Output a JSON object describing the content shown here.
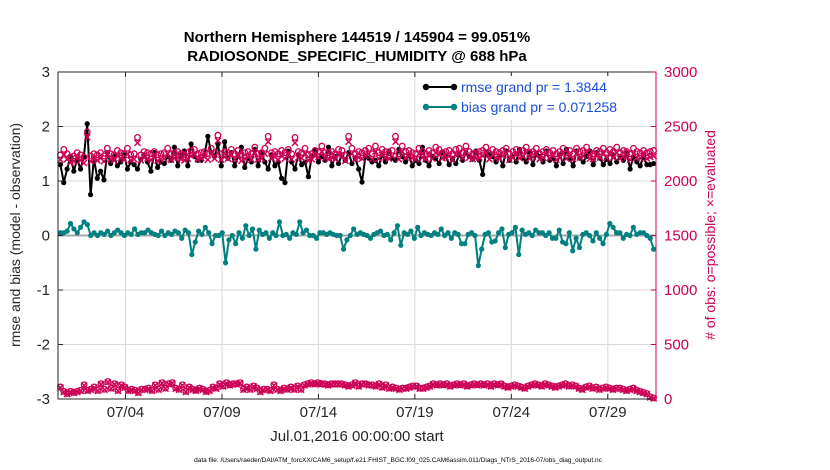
{
  "chart_data": {
    "type": "line",
    "title": "Northern Hemisphere 144519 / 145904 = 99.051%",
    "subtitle": "RADIOSONDE_SPECIFIC_HUMIDITY @ 688 hPa",
    "xlabel": "Jul.01,2016 00:00:00 start",
    "ylabel": "rmse and bias (model - observation)",
    "ylabel_right": "# of obs: o=possible; ×=evaluated",
    "footer": "data file: /Users/raeder/DAI/ATM_forcXX/CAM6_setup/f.e21.FHIST_BGC.f09_025.CAM6assim.011/Diags_NTrS_2016-07/obs_diag_output.nc",
    "xlim": [
      0.5,
      31.5
    ],
    "ylim": [
      -3,
      3
    ],
    "ylim_right": [
      0,
      3000
    ],
    "x_ticks": [
      4,
      9,
      14,
      19,
      24,
      29
    ],
    "x_tick_labels": [
      "07/04",
      "07/09",
      "07/14",
      "07/19",
      "07/24",
      "07/29"
    ],
    "y_ticks": [
      -3,
      -2,
      -1,
      0,
      1,
      2,
      3
    ],
    "y_tick_labels": [
      "-3",
      "-2",
      "-1",
      "0",
      "1",
      "2",
      "3"
    ],
    "y_right_ticks": [
      0,
      500,
      1000,
      1500,
      2000,
      2500,
      3000
    ],
    "y_right_tick_labels": [
      "0",
      "500",
      "1000",
      "1500",
      "2000",
      "2500",
      "3000"
    ],
    "legend": [
      {
        "label": "rmse grand pr = 1.3844",
        "color": "#000000"
      },
      {
        "label": "bias grand pr = 0.071258",
        "color": "#008080"
      }
    ],
    "series": [
      {
        "name": "rmse",
        "color": "#000000",
        "axis": "left",
        "values": [
          1.3,
          0.97,
          1.22,
          1.45,
          1.18,
          1.4,
          1.22,
          1.45,
          2.05,
          0.75,
          1.42,
          1.05,
          1.18,
          1.02,
          1.52,
          1.32,
          1.45,
          1.28,
          1.35,
          1.48,
          1.22,
          1.35,
          1.3,
          1.22,
          1.4,
          1.48,
          1.35,
          1.18,
          1.52,
          1.25,
          1.35,
          1.32,
          1.45,
          1.38,
          1.62,
          1.28,
          1.48,
          1.55,
          1.28,
          1.68,
          1.45,
          1.38,
          1.38,
          1.48,
          1.82,
          1.52,
          1.45,
          1.68,
          1.28,
          1.72,
          1.42,
          1.52,
          1.28,
          1.45,
          1.62,
          1.25,
          1.42,
          1.35,
          1.58,
          1.28,
          1.52,
          1.35,
          1.22,
          1.48,
          1.28,
          1.35,
          1.05,
          0.97,
          1.55,
          1.35,
          1.22,
          1.48,
          1.3,
          1.35,
          1.08,
          1.45,
          1.55,
          1.35,
          1.45,
          1.38,
          1.62,
          1.28,
          1.45,
          1.32,
          1.48,
          1.38,
          1.52,
          1.32,
          1.42,
          1.22,
          0.98,
          1.45,
          1.42,
          1.35,
          1.38,
          1.28,
          1.48,
          1.35,
          1.55,
          1.42,
          1.38,
          1.58,
          1.45,
          1.35,
          1.48,
          1.28,
          1.38,
          1.32,
          1.62,
          1.38,
          1.28,
          1.45,
          1.42,
          1.32,
          1.52,
          1.45,
          1.3,
          1.4,
          1.32,
          1.48,
          1.38,
          1.52,
          1.45,
          1.4,
          1.55,
          1.38,
          1.12,
          1.52,
          1.48,
          1.45,
          1.35,
          1.45,
          1.28,
          1.55,
          1.38,
          1.45,
          1.35,
          1.58,
          1.42,
          1.35,
          1.52,
          1.3,
          1.5,
          1.45,
          1.35,
          1.55,
          1.38,
          1.42,
          1.28,
          1.48,
          1.32,
          1.58,
          1.4,
          1.28,
          1.55,
          1.42,
          1.35,
          1.45,
          1.55,
          1.3,
          1.52,
          1.42,
          1.3,
          1.4,
          1.32,
          1.48,
          1.35,
          1.45,
          1.38,
          1.52,
          1.22,
          1.45,
          1.35,
          1.28,
          1.45,
          1.3,
          1.3,
          1.32
        ]
      },
      {
        "name": "bias",
        "color": "#008080",
        "axis": "left",
        "values": [
          0.05,
          0.05,
          0.08,
          0.22,
          0.12,
          0.05,
          0.15,
          0.25,
          0.2,
          0.0,
          0.05,
          0.0,
          0.05,
          0.02,
          0.08,
          0.0,
          0.05,
          0.1,
          0.05,
          0.0,
          0.05,
          0.02,
          0.12,
          0.02,
          0.05,
          0.05,
          0.1,
          0.05,
          0.02,
          0.0,
          0.08,
          0.0,
          0.05,
          0.02,
          0.08,
          0.05,
          -0.05,
          0.1,
          0.05,
          -0.35,
          -0.12,
          0.08,
          0.02,
          0.15,
          0.05,
          -0.15,
          0.0,
          0.0,
          0.05,
          -0.5,
          -0.08,
          0.0,
          -0.15,
          0.05,
          -0.05,
          0.18,
          0.0,
          0.12,
          -0.25,
          0.1,
          0.02,
          0.05,
          -0.05,
          0.05,
          0.0,
          0.25,
          0.0,
          0.02,
          -0.05,
          0.05,
          0.02,
          0.25,
          0.05,
          0.1,
          0.0,
          0.0,
          -0.05,
          0.05,
          0.05,
          0.02,
          0.05,
          0.02,
          0.0,
          0.0,
          -0.25,
          -0.08,
          0.0,
          0.12,
          0.02,
          0.05,
          0.02,
          0.0,
          -0.05,
          0.02,
          0.05,
          0.08,
          0.0,
          0.02,
          -0.08,
          0.05,
          0.18,
          -0.18,
          0.05,
          0.02,
          0.08,
          -0.05,
          0.15,
          0.0,
          0.05,
          0.02,
          0.0,
          0.05,
          0.02,
          0.12,
          0.0,
          0.05,
          -0.05,
          0.05,
          0.02,
          -0.15,
          -0.15,
          0.02,
          0.05,
          0.0,
          -0.55,
          -0.25,
          0.02,
          0.05,
          -0.12,
          -0.1,
          0.05,
          0.12,
          -0.22,
          0.02,
          0.05,
          0.15,
          -0.35,
          0.1,
          0.02,
          0.05,
          0.0,
          0.1,
          0.05,
          0.05,
          0.0,
          0.05,
          -0.05,
          -0.05,
          0.1,
          -0.12,
          -0.15,
          0.05,
          -0.28,
          -0.05,
          -0.22,
          0.02,
          0.05,
          0.0,
          -0.1,
          0.05,
          -0.05,
          -0.15,
          0.02,
          0.22,
          0.15,
          0.05,
          0.05,
          -0.05,
          0.02,
          0.0,
          0.15,
          0.02,
          0.05,
          0.05,
          0.0,
          -0.05,
          -0.25
        ]
      },
      {
        "name": "possible",
        "color": "#cc0055",
        "axis": "right",
        "marker": "o",
        "values": [
          2240,
          2290,
          2250,
          2220,
          2230,
          2260,
          2240,
          2220,
          2450,
          2230,
          2250,
          2240,
          2260,
          2230,
          2300,
          2250,
          2240,
          2280,
          2260,
          2250,
          2300,
          2240,
          2250,
          2400,
          2240,
          2270,
          2260,
          2250,
          2270,
          2240,
          2250,
          2260,
          2300,
          2250,
          2260,
          2270,
          2250,
          2240,
          2260,
          2280,
          2290,
          2250,
          2260,
          2270,
          2250,
          2300,
          2260,
          2420,
          2250,
          2270,
          2260,
          2290,
          2250,
          2280,
          2240,
          2260,
          2270,
          2250,
          2310,
          2250,
          2260,
          2300,
          2410,
          2260,
          2270,
          2250,
          2280,
          2260,
          2290,
          2250,
          2400,
          2270,
          2260,
          2300,
          2240,
          2250,
          2280,
          2270,
          2320,
          2260,
          2260,
          2270,
          2250,
          2290,
          2280,
          2240,
          2410,
          2300,
          2250,
          2270,
          2260,
          2280,
          2300,
          2250,
          2320,
          2260,
          2290,
          2270,
          2260,
          2280,
          2410,
          2250,
          2320,
          2270,
          2280,
          2260,
          2250,
          2300,
          2270,
          2250,
          2280,
          2260,
          2310,
          2290,
          2260,
          2270,
          2280,
          2250,
          2290,
          2300,
          2260,
          2320,
          2270,
          2250,
          2260,
          2270,
          2280,
          2310,
          2250,
          2290,
          2270,
          2260,
          2280,
          2300,
          2250,
          2270,
          2290,
          2260,
          2280,
          2310,
          2260,
          2270,
          2300,
          2250,
          2270,
          2290,
          2260,
          2280,
          2250,
          2270,
          2300,
          2260,
          2280,
          2250,
          2300,
          2270,
          2280,
          2310,
          2260,
          2250,
          2280,
          2270,
          2300,
          2260,
          2290,
          2270,
          2310,
          2260,
          2280,
          2270,
          2250,
          2300,
          2270,
          2260,
          2280,
          2260,
          2270,
          2280
        ]
      },
      {
        "name": "evaluated",
        "color": "#cc0055",
        "axis": "right",
        "marker": "x",
        "values": [
          2195,
          2240,
          2200,
          2170,
          2180,
          2210,
          2190,
          2165,
          2400,
          2180,
          2200,
          2190,
          2210,
          2180,
          2250,
          2200,
          2190,
          2230,
          2210,
          2195,
          2250,
          2190,
          2200,
          2350,
          2190,
          2215,
          2205,
          2195,
          2215,
          2185,
          2200,
          2205,
          2250,
          2195,
          2210,
          2215,
          2200,
          2190,
          2205,
          2230,
          2240,
          2200,
          2210,
          2220,
          2195,
          2250,
          2205,
          2370,
          2195,
          2220,
          2205,
          2240,
          2200,
          2230,
          2185,
          2205,
          2220,
          2195,
          2260,
          2200,
          2205,
          2250,
          2360,
          2210,
          2220,
          2195,
          2230,
          2205,
          2240,
          2200,
          2350,
          2215,
          2210,
          2250,
          2190,
          2200,
          2230,
          2220,
          2270,
          2210,
          2205,
          2215,
          2200,
          2240,
          2230,
          2185,
          2360,
          2250,
          2200,
          2215,
          2205,
          2230,
          2250,
          2200,
          2270,
          2205,
          2240,
          2215,
          2205,
          2230,
          2360,
          2200,
          2270,
          2215,
          2230,
          2210,
          2200,
          2250,
          2215,
          2200,
          2230,
          2205,
          2260,
          2240,
          2210,
          2215,
          2230,
          2195,
          2240,
          2250,
          2210,
          2270,
          2215,
          2200,
          2210,
          2215,
          2230,
          2260,
          2200,
          2240,
          2215,
          2205,
          2230,
          2250,
          2195,
          2215,
          2240,
          2210,
          2225,
          2260,
          2205,
          2220,
          2250,
          2200,
          2215,
          2240,
          2210,
          2230,
          2195,
          2215,
          2250,
          2205,
          2230,
          2200,
          2250,
          2215,
          2230,
          2260,
          2205,
          2200,
          2230,
          2215,
          2250,
          2210,
          2240,
          2215,
          2260,
          2205,
          2225,
          2220,
          2195,
          2250,
          2215,
          2210,
          2230,
          2205,
          2220,
          2230
        ]
      },
      {
        "name": "possible_low",
        "color": "#cc0055",
        "axis": "right",
        "marker": "o",
        "values": [
          110,
          70,
          50,
          70,
          60,
          70,
          80,
          130,
          80,
          90,
          110,
          80,
          140,
          90,
          160,
          100,
          140,
          80,
          130,
          110,
          80,
          90,
          80,
          60,
          90,
          90,
          100,
          80,
          130,
          90,
          150,
          100,
          140,
          150,
          100,
          90,
          130,
          70,
          110,
          90,
          80,
          100,
          90,
          70,
          80,
          110,
          100,
          140,
          120,
          150,
          130,
          140,
          140,
          150,
          90,
          110,
          90,
          120,
          100,
          70,
          90,
          90,
          80,
          130,
          90,
          80,
          100,
          90,
          110,
          90,
          120,
          90,
          130,
          140,
          150,
          140,
          150,
          140,
          140,
          130,
          140,
          140,
          140,
          140,
          130,
          120,
          130,
          150,
          120,
          140,
          140,
          130,
          130,
          120,
          140,
          110,
          130,
          100,
          110,
          100,
          90,
          100,
          100,
          110,
          120,
          120,
          100,
          100,
          110,
          120,
          140,
          130,
          140,
          130,
          140,
          120,
          130,
          140,
          130,
          140,
          120,
          130,
          140,
          130,
          140,
          130,
          140,
          120,
          140,
          130,
          140,
          120,
          110,
          120,
          130,
          120,
          110,
          100,
          120,
          130,
          140,
          130,
          120,
          140,
          130,
          120,
          110,
          120,
          130,
          140,
          120,
          130,
          120,
          100,
          90,
          110,
          120,
          100,
          110,
          90,
          100,
          110,
          100,
          90,
          100,
          100,
          90,
          80,
          90,
          100,
          80,
          70,
          60,
          50,
          20,
          10
        ]
      },
      {
        "name": "evaluated_low",
        "color": "#cc0055",
        "axis": "right",
        "marker": "x",
        "values": [
          105,
          65,
          45,
          65,
          55,
          65,
          75,
          125,
          75,
          85,
          105,
          75,
          135,
          85,
          155,
          95,
          135,
          75,
          125,
          105,
          75,
          85,
          75,
          55,
          85,
          85,
          95,
          75,
          125,
          85,
          145,
          95,
          135,
          145,
          95,
          85,
          125,
          65,
          105,
          85,
          75,
          95,
          85,
          65,
          75,
          105,
          95,
          135,
          115,
          145,
          125,
          135,
          135,
          145,
          85,
          105,
          85,
          115,
          95,
          65,
          85,
          85,
          75,
          125,
          85,
          75,
          95,
          85,
          105,
          85,
          115,
          85,
          125,
          135,
          145,
          135,
          145,
          135,
          135,
          125,
          135,
          135,
          135,
          135,
          125,
          115,
          125,
          145,
          115,
          135,
          135,
          125,
          125,
          115,
          135,
          105,
          125,
          95,
          105,
          95,
          85,
          95,
          95,
          105,
          115,
          115,
          95,
          95,
          105,
          115,
          135,
          125,
          135,
          125,
          135,
          115,
          125,
          135,
          125,
          135,
          115,
          125,
          135,
          125,
          135,
          125,
          135,
          115,
          135,
          125,
          135,
          115,
          105,
          115,
          125,
          115,
          105,
          95,
          115,
          125,
          135,
          125,
          115,
          135,
          125,
          115,
          105,
          115,
          125,
          135,
          115,
          125,
          115,
          95,
          85,
          105,
          115,
          95,
          105,
          85,
          95,
          105,
          95,
          85,
          95,
          95,
          85,
          75,
          85,
          95,
          75,
          65,
          55,
          45,
          15,
          5
        ]
      }
    ]
  }
}
